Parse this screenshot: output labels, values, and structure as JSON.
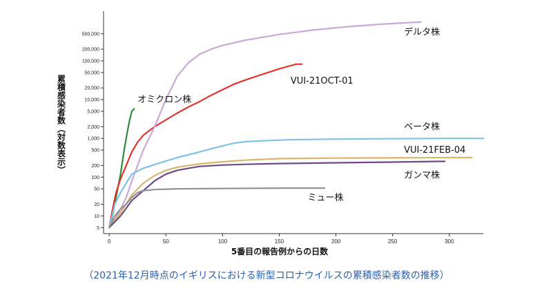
{
  "caption": "（2021年12月時点のイギリスにおける新型コロナウイルスの累積感染者数の推移）",
  "chart_data": {
    "type": "line",
    "title": "",
    "xlabel": "5番目の報告例からの日数",
    "ylabel": "累積感染者数（対数表示）",
    "yscale": "log",
    "xlim": [
      -5,
      330
    ],
    "ylim": [
      3.5,
      1500000
    ],
    "xticks": [
      0,
      50,
      100,
      150,
      200,
      250,
      300
    ],
    "yticks": [
      {
        "value": 5,
        "label": "5"
      },
      {
        "value": 10,
        "label": "10"
      },
      {
        "value": 20,
        "label": "20"
      },
      {
        "value": 50,
        "label": "50"
      },
      {
        "value": 100,
        "label": "100"
      },
      {
        "value": 200,
        "label": "200"
      },
      {
        "value": 500,
        "label": "500"
      },
      {
        "value": 1000,
        "label": "1,000"
      },
      {
        "value": 2000,
        "label": "2,000"
      },
      {
        "value": 5000,
        "label": "5,000"
      },
      {
        "value": 10000,
        "label": "10,000"
      },
      {
        "value": 20000,
        "label": "20,000"
      },
      {
        "value": 50000,
        "label": "50,000"
      },
      {
        "value": 100000,
        "label": "100,000"
      },
      {
        "value": 200000,
        "label": "200,000"
      },
      {
        "value": 500000,
        "label": "500,000"
      }
    ],
    "grid": false,
    "series": [
      {
        "name": "オミクロン株",
        "color": "#2e8b3a",
        "points": [
          [
            0,
            5
          ],
          [
            2,
            8
          ],
          [
            4,
            15
          ],
          [
            6,
            30
          ],
          [
            8,
            60
          ],
          [
            10,
            120
          ],
          [
            12,
            300
          ],
          [
            14,
            700
          ],
          [
            16,
            1500
          ],
          [
            18,
            3000
          ],
          [
            20,
            5000
          ],
          [
            22,
            5800
          ]
        ],
        "label_at": [
          25,
          8500
        ]
      },
      {
        "name": "VUI-21OCT-01",
        "color": "#e0342f",
        "points": [
          [
            0,
            5
          ],
          [
            3,
            15
          ],
          [
            6,
            40
          ],
          [
            10,
            90
          ],
          [
            15,
            200
          ],
          [
            20,
            450
          ],
          [
            25,
            800
          ],
          [
            30,
            1200
          ],
          [
            40,
            2000
          ],
          [
            50,
            3000
          ],
          [
            60,
            4500
          ],
          [
            70,
            6500
          ],
          [
            80,
            9000
          ],
          [
            90,
            13000
          ],
          [
            100,
            18000
          ],
          [
            110,
            25000
          ],
          [
            120,
            32000
          ],
          [
            130,
            40000
          ],
          [
            140,
            50000
          ],
          [
            150,
            62000
          ],
          [
            160,
            75000
          ],
          [
            165,
            82000
          ],
          [
            170,
            82000
          ]
        ],
        "label_at": [
          160,
          26000
        ]
      },
      {
        "name": "デルタ株",
        "color": "#c9a8d8",
        "points": [
          [
            0,
            5
          ],
          [
            5,
            8
          ],
          [
            10,
            15
          ],
          [
            15,
            30
          ],
          [
            20,
            80
          ],
          [
            25,
            200
          ],
          [
            30,
            500
          ],
          [
            40,
            2000
          ],
          [
            50,
            10000
          ],
          [
            60,
            40000
          ],
          [
            70,
            90000
          ],
          [
            80,
            150000
          ],
          [
            90,
            200000
          ],
          [
            100,
            250000
          ],
          [
            120,
            340000
          ],
          [
            150,
            480000
          ],
          [
            180,
            620000
          ],
          [
            210,
            760000
          ],
          [
            240,
            880000
          ],
          [
            260,
            950000
          ],
          [
            275,
            1000000
          ]
        ],
        "label_at": [
          260,
          470000
        ]
      },
      {
        "name": "ベータ株",
        "color": "#7fc1e6",
        "points": [
          [
            0,
            5
          ],
          [
            5,
            20
          ],
          [
            10,
            40
          ],
          [
            15,
            70
          ],
          [
            20,
            120
          ],
          [
            30,
            170
          ],
          [
            40,
            210
          ],
          [
            50,
            260
          ],
          [
            60,
            320
          ],
          [
            70,
            380
          ],
          [
            80,
            450
          ],
          [
            90,
            540
          ],
          [
            100,
            640
          ],
          [
            110,
            750
          ],
          [
            120,
            820
          ],
          [
            140,
            880
          ],
          [
            160,
            920
          ],
          [
            200,
            960
          ],
          [
            250,
            980
          ],
          [
            300,
            1000
          ],
          [
            330,
            1000
          ]
        ],
        "label_at": [
          260,
          1700
        ]
      },
      {
        "name": "VUI-21FEB-04",
        "color": "#d9b469",
        "points": [
          [
            0,
            5
          ],
          [
            10,
            12
          ],
          [
            20,
            35
          ],
          [
            30,
            70
          ],
          [
            40,
            110
          ],
          [
            50,
            150
          ],
          [
            60,
            180
          ],
          [
            70,
            200
          ],
          [
            80,
            220
          ],
          [
            100,
            250
          ],
          [
            120,
            275
          ],
          [
            150,
            300
          ],
          [
            200,
            310
          ],
          [
            250,
            315
          ],
          [
            300,
            320
          ],
          [
            320,
            320
          ]
        ],
        "label_at": [
          260,
          430
        ]
      },
      {
        "name": "ガンマ株",
        "color": "#6d4a85",
        "points": [
          [
            0,
            5
          ],
          [
            10,
            10
          ],
          [
            20,
            25
          ],
          [
            30,
            45
          ],
          [
            40,
            80
          ],
          [
            50,
            120
          ],
          [
            60,
            150
          ],
          [
            70,
            170
          ],
          [
            80,
            190
          ],
          [
            100,
            205
          ],
          [
            120,
            215
          ],
          [
            150,
            225
          ],
          [
            200,
            235
          ],
          [
            250,
            245
          ],
          [
            290,
            255
          ],
          [
            296,
            255
          ]
        ],
        "label_at": [
          260,
          95
        ]
      },
      {
        "name": "ミュー株",
        "color": "#8f8f8f",
        "points": [
          [
            0,
            5
          ],
          [
            5,
            10
          ],
          [
            10,
            15
          ],
          [
            15,
            20
          ],
          [
            20,
            30
          ],
          [
            25,
            40
          ],
          [
            30,
            45
          ],
          [
            40,
            48
          ],
          [
            60,
            50
          ],
          [
            100,
            51
          ],
          [
            150,
            52
          ],
          [
            190,
            52
          ]
        ],
        "label_at": [
          175,
          25
        ]
      }
    ]
  }
}
